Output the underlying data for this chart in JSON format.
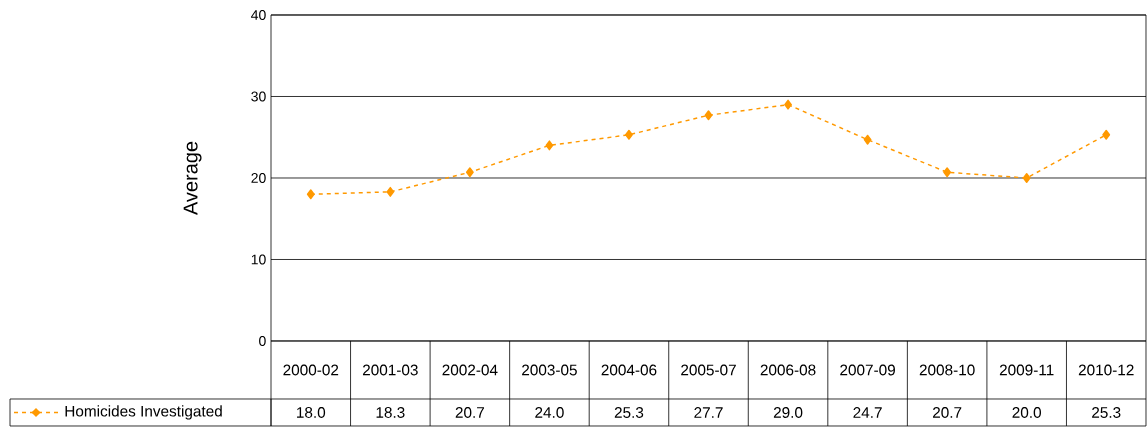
{
  "chart_data": {
    "type": "line",
    "ylabel": "Average",
    "categories": [
      "2000-02",
      "2001-03",
      "2002-04",
      "2003-05",
      "2004-06",
      "2005-07",
      "2006-08",
      "2007-09",
      "2008-10",
      "2009-11",
      "2010-12"
    ],
    "series": [
      {
        "name": "Homicides Investigated",
        "color": "#ff9900",
        "values": [
          18.0,
          18.3,
          20.7,
          24.0,
          25.3,
          27.7,
          29.0,
          24.7,
          20.7,
          20.0,
          25.3
        ],
        "value_labels": [
          "18.0",
          "18.3",
          "20.7",
          "24.0",
          "25.3",
          "27.7",
          "29.0",
          "24.7",
          "20.7",
          "20.0",
          "25.3"
        ]
      }
    ],
    "ylim": [
      0,
      40
    ],
    "yticks": [
      0,
      10,
      20,
      30,
      40
    ],
    "grid": "y",
    "legend": "bottom",
    "marker": "diamond",
    "line_style": "dashed"
  }
}
